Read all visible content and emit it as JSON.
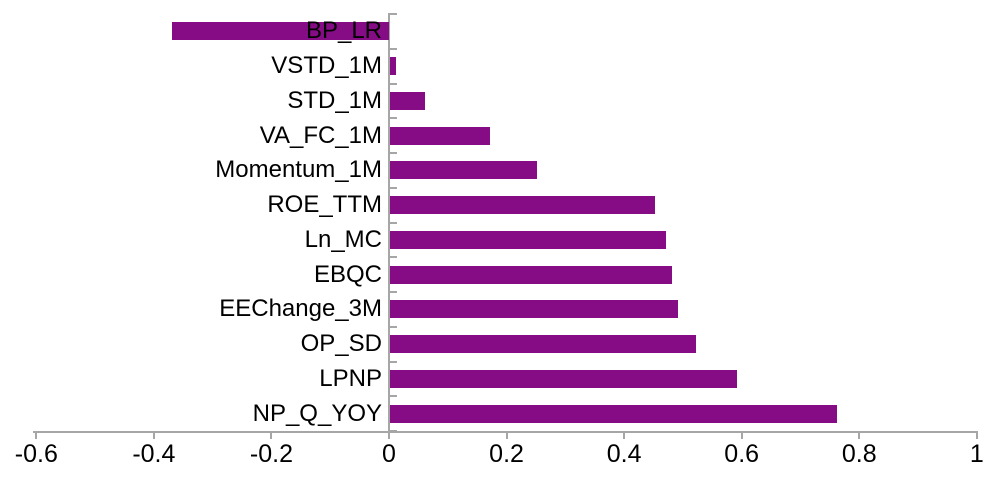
{
  "chart_data": {
    "type": "bar",
    "orientation": "horizontal",
    "title": "",
    "xlabel": "",
    "ylabel": "",
    "categories": [
      "BP_LR",
      "VSTD_1M",
      "STD_1M",
      "VA_FC_1M",
      "Momentum_1M",
      "ROE_TTM",
      "Ln_MC",
      "EBQC",
      "EEChange_3M",
      "OP_SD",
      "LPNP",
      "NP_Q_YOY"
    ],
    "values": [
      -0.37,
      0.01,
      0.06,
      0.17,
      0.25,
      0.45,
      0.47,
      0.48,
      0.49,
      0.52,
      0.59,
      0.76
    ],
    "xlim": [
      -0.6,
      1
    ],
    "x_tick_labels": [
      "-0.6",
      "-0.4",
      "-0.2",
      "0",
      "0.2",
      "0.4",
      "0.6",
      "0.8",
      "1"
    ],
    "x_tick_values": [
      -0.6,
      -0.4,
      -0.2,
      0,
      0.2,
      0.4,
      0.6,
      0.8,
      1
    ],
    "grid": false,
    "legend": false,
    "colors": {
      "bar": "#860c86",
      "axis": "#a6a6a6",
      "text": "#000000",
      "background": "#ffffff"
    }
  }
}
